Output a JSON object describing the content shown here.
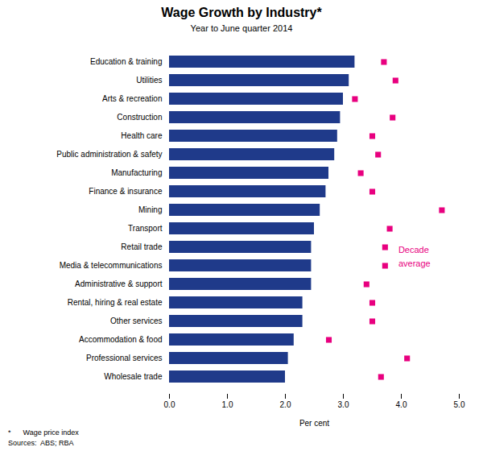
{
  "chart_data": {
    "type": "bar",
    "orientation": "horizontal",
    "title": "Wage Growth by Industry*",
    "subtitle": "Year to June quarter 2014",
    "xlabel": "Per cent",
    "footnotes": [
      "*      Wage price index",
      "Sources:  ABS; RBA"
    ],
    "categories": [
      "Education & training",
      "Utilities",
      "Arts & recreation",
      "Construction",
      "Health care",
      "Public administration & safety",
      "Manufacturing",
      "Finance & insurance",
      "Mining",
      "Transport",
      "Retail trade",
      "Media & telecommunications",
      "Administrative & support",
      "Rental, hiring & real estate",
      "Other services",
      "Accommodation & food",
      "Professional services",
      "Wholesale trade"
    ],
    "series": [
      {
        "type": "bar",
        "color": "#1f3a8a",
        "values": [
          3.2,
          3.1,
          3.0,
          2.95,
          2.9,
          2.85,
          2.75,
          2.7,
          2.6,
          2.5,
          2.45,
          2.45,
          2.45,
          2.3,
          2.3,
          2.15,
          2.05,
          2.0
        ]
      },
      {
        "type": "scatter",
        "marker": "square",
        "color": "#e8007f",
        "values": [
          3.7,
          3.9,
          3.2,
          3.85,
          3.5,
          3.6,
          3.3,
          3.5,
          4.7,
          3.8,
          null,
          null,
          3.4,
          3.5,
          3.5,
          2.75,
          4.1,
          3.65
        ]
      }
    ],
    "annotations": [
      {
        "text": "Decade",
        "x": 3.95,
        "y": "Retail trade",
        "icon_x": 3.72,
        "color": "#e8007f"
      },
      {
        "text": "average",
        "x": 3.95,
        "y": "Media & telecommunications",
        "icon_x": 3.72,
        "color": "#e8007f"
      }
    ],
    "xlim": [
      0,
      5
    ],
    "xticks": [
      0,
      1,
      2,
      3,
      4,
      5
    ],
    "grid": false
  }
}
